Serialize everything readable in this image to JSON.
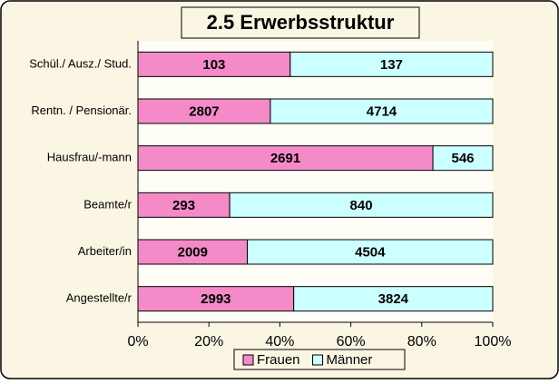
{
  "chart_data": {
    "type": "bar",
    "orientation": "horizontal",
    "stacking": "percent",
    "title": "2.5 Erwerbsstruktur",
    "categories": [
      "Schül./ Ausz./ Stud.",
      "Rentn. / Pensionär.",
      "Hausfrau/-mann",
      "Beamte/r",
      "Arbeiter/in",
      "Angestellte/r"
    ],
    "series": [
      {
        "name": "Frauen",
        "color": "#f58ac8",
        "values": [
          103,
          2807,
          2691,
          293,
          2009,
          2993
        ]
      },
      {
        "name": "Männer",
        "color": "#ccffff",
        "values": [
          137,
          4714,
          546,
          840,
          4504,
          3824
        ]
      }
    ],
    "xlim": [
      0,
      100
    ],
    "xticks": [
      {
        "value": 0,
        "label": "0%"
      },
      {
        "value": 20,
        "label": "20%"
      },
      {
        "value": 40,
        "label": "40%"
      },
      {
        "value": 60,
        "label": "60%"
      },
      {
        "value": 80,
        "label": "80%"
      },
      {
        "value": 100,
        "label": "100%"
      }
    ],
    "legend": "bottom"
  }
}
